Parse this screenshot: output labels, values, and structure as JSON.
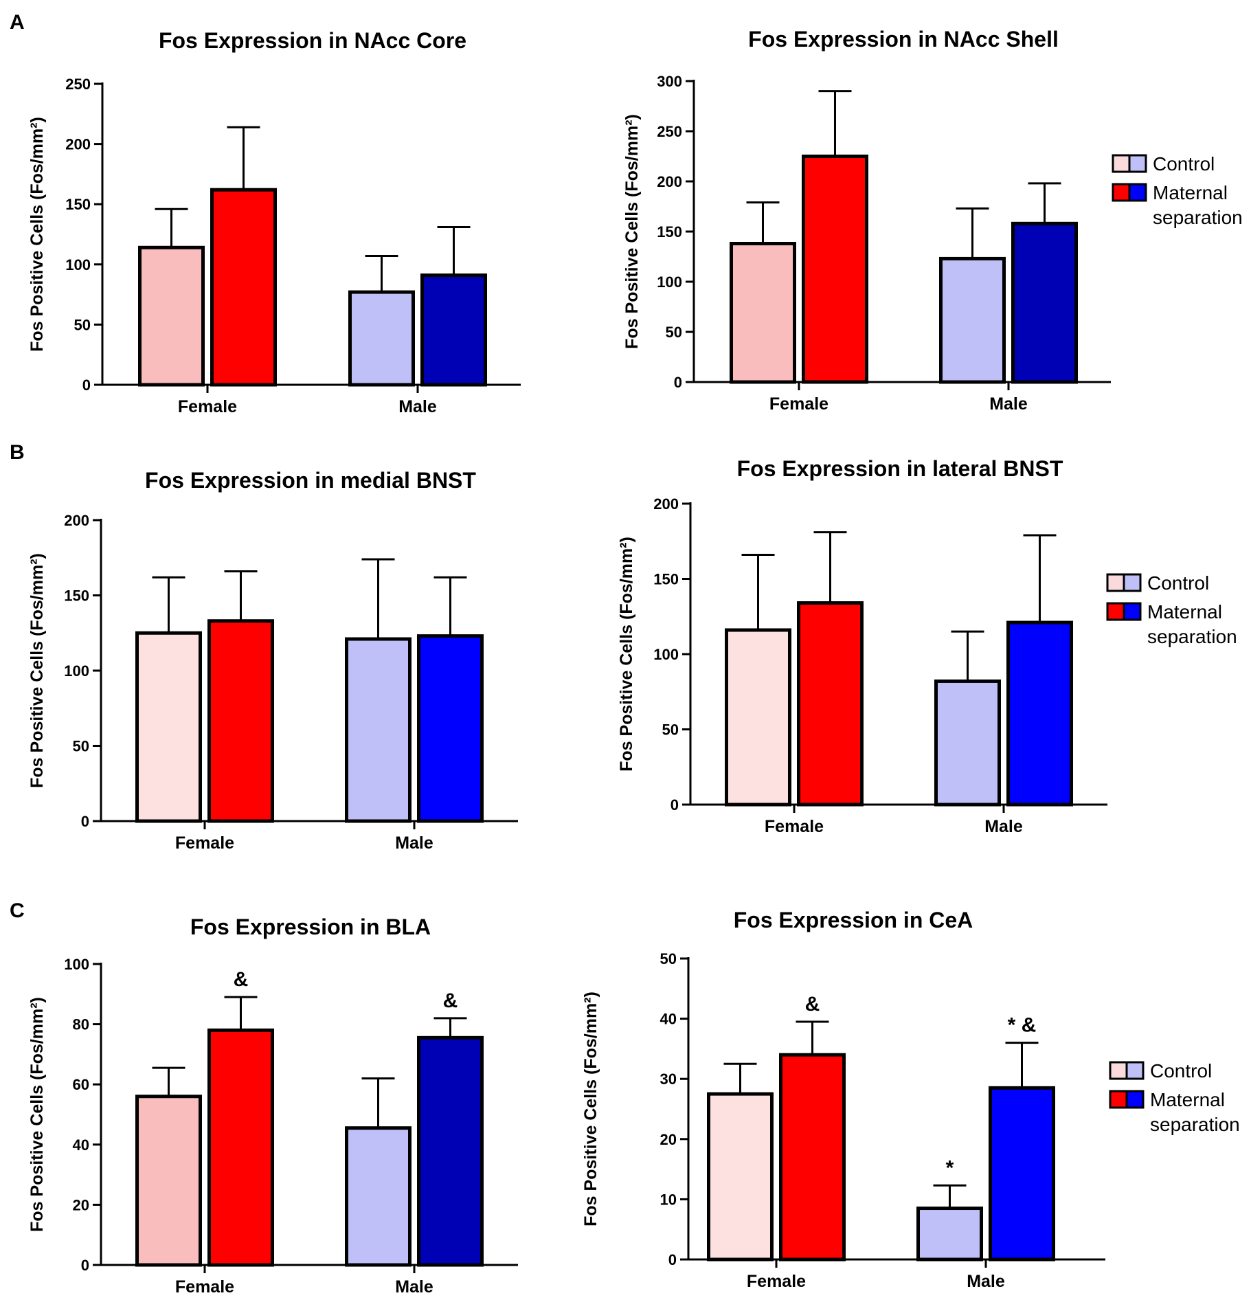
{
  "panel_letters": [
    "A",
    "B",
    "C"
  ],
  "legend": {
    "control_label": "Control",
    "ms_label_line1": "Maternal",
    "ms_label_line2": "separation",
    "control_colors": [
      "#FADADD",
      "#C0C0F8"
    ],
    "ms_colors": [
      "#FF0000",
      "#0000FF"
    ]
  },
  "chart_data": [
    {
      "type": "bar",
      "panel": "A",
      "title": "Fos Expression in NAcc Core",
      "ylabel": "Fos Positive Cells (Fos/mm²)",
      "xlabel": "",
      "categories": [
        "Female",
        "Male"
      ],
      "ylim": [
        0,
        250
      ],
      "yticks": [
        0,
        50,
        100,
        150,
        200,
        250
      ],
      "series": [
        {
          "name": "Control",
          "values": [
            114,
            77
          ],
          "errors": [
            32,
            30
          ],
          "colors": [
            "#F9BDBD",
            "#C0C0F8"
          ],
          "annotations": [
            "",
            ""
          ]
        },
        {
          "name": "Maternal separation",
          "values": [
            162,
            91
          ],
          "errors": [
            52,
            40
          ],
          "colors": [
            "#FF0000",
            "#0000B4"
          ],
          "annotations": [
            "",
            ""
          ]
        }
      ],
      "legend": false
    },
    {
      "type": "bar",
      "panel": "A",
      "title": "Fos Expression in NAcc Shell",
      "ylabel": "Fos Positive Cells (Fos/mm²)",
      "xlabel": "",
      "categories": [
        "Female",
        "Male"
      ],
      "ylim": [
        0,
        300
      ],
      "yticks": [
        0,
        50,
        100,
        150,
        200,
        250,
        300
      ],
      "series": [
        {
          "name": "Control",
          "values": [
            138,
            123
          ],
          "errors": [
            41,
            50
          ],
          "colors": [
            "#F9BDBD",
            "#C0C0F8"
          ],
          "annotations": [
            "",
            ""
          ]
        },
        {
          "name": "Maternal separation",
          "values": [
            225,
            158
          ],
          "errors": [
            65,
            40
          ],
          "colors": [
            "#FF0000",
            "#0000B4"
          ],
          "annotations": [
            "",
            ""
          ]
        }
      ],
      "legend": true
    },
    {
      "type": "bar",
      "panel": "B",
      "title": "Fos Expression in medial BNST",
      "ylabel": "Fos Positive Cells (Fos/mm²)",
      "xlabel": "",
      "categories": [
        "Female",
        "Male"
      ],
      "ylim": [
        0,
        200
      ],
      "yticks": [
        0,
        50,
        100,
        150,
        200
      ],
      "series": [
        {
          "name": "Control",
          "values": [
            125,
            121
          ],
          "errors": [
            37,
            53
          ],
          "colors": [
            "#FDE0E0",
            "#C0C0F8"
          ],
          "annotations": [
            "",
            ""
          ]
        },
        {
          "name": "Maternal separation",
          "values": [
            133,
            123
          ],
          "errors": [
            33,
            39
          ],
          "colors": [
            "#FF0000",
            "#0000FF"
          ],
          "annotations": [
            "",
            ""
          ]
        }
      ],
      "legend": false
    },
    {
      "type": "bar",
      "panel": "B",
      "title": "Fos Expression in lateral BNST",
      "ylabel": "Fos Positive Cells (Fos/mm²)",
      "xlabel": "",
      "categories": [
        "Female",
        "Male"
      ],
      "ylim": [
        0,
        200
      ],
      "yticks": [
        0,
        50,
        100,
        150,
        200
      ],
      "series": [
        {
          "name": "Control",
          "values": [
            116,
            82
          ],
          "errors": [
            50,
            33
          ],
          "colors": [
            "#FDE0E0",
            "#C0C0F8"
          ],
          "annotations": [
            "",
            ""
          ]
        },
        {
          "name": "Maternal separation",
          "values": [
            134,
            121
          ],
          "errors": [
            47,
            58
          ],
          "colors": [
            "#FF0000",
            "#0000FF"
          ],
          "annotations": [
            "",
            ""
          ]
        }
      ],
      "legend": true
    },
    {
      "type": "bar",
      "panel": "C",
      "title": "Fos Expression in BLA",
      "ylabel": "Fos Positive Cells (Fos/mm²)",
      "xlabel": "",
      "categories": [
        "Female",
        "Male"
      ],
      "ylim": [
        0,
        100
      ],
      "yticks": [
        0,
        20,
        40,
        60,
        80,
        100
      ],
      "series": [
        {
          "name": "Control",
          "values": [
            56,
            45.5
          ],
          "errors": [
            9.5,
            16.5
          ],
          "colors": [
            "#F9BDBD",
            "#C0C0F8"
          ],
          "annotations": [
            "",
            ""
          ]
        },
        {
          "name": "Maternal separation",
          "values": [
            78,
            75.5
          ],
          "errors": [
            11,
            6.5
          ],
          "colors": [
            "#FF0000",
            "#0000B4"
          ],
          "annotations": [
            "&",
            "&"
          ]
        }
      ],
      "legend": false
    },
    {
      "type": "bar",
      "panel": "C",
      "title": "Fos Expression in CeA",
      "ylabel": "Fos Positive Cells (Fos/mm²)",
      "xlabel": "",
      "categories": [
        "Female",
        "Male"
      ],
      "ylim": [
        0,
        50
      ],
      "yticks": [
        0,
        10,
        20,
        30,
        40,
        50
      ],
      "series": [
        {
          "name": "Control",
          "values": [
            27.5,
            8.5
          ],
          "errors": [
            5,
            3.8
          ],
          "colors": [
            "#FDE0E0",
            "#C0C0F8"
          ],
          "annotations": [
            "",
            "*"
          ]
        },
        {
          "name": "Maternal separation",
          "values": [
            34,
            28.5
          ],
          "errors": [
            5.5,
            7.5
          ],
          "colors": [
            "#FF0000",
            "#0000FF"
          ],
          "annotations": [
            "&",
            "* &"
          ]
        }
      ],
      "legend": true
    }
  ]
}
